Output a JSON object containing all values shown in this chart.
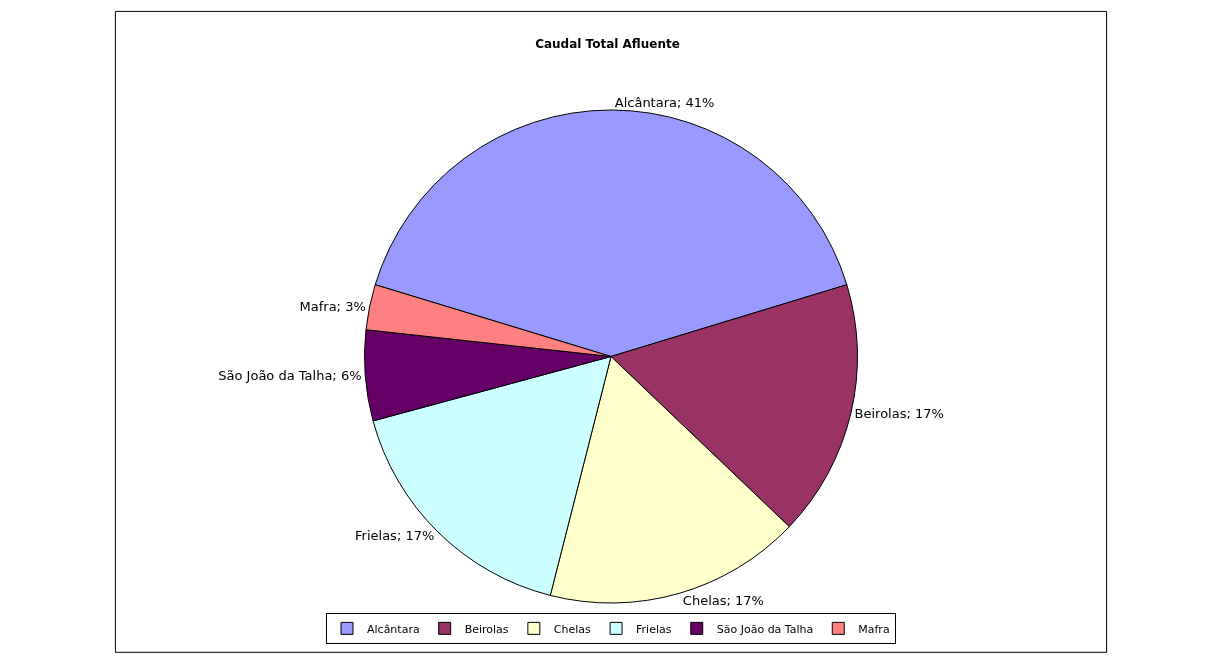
{
  "chart_data": {
    "type": "pie",
    "title": "Caudal Total Afluente",
    "categories": [
      "Alcântara",
      "Beirolas",
      "Chelas",
      "Frielas",
      "São João da Talha",
      "Mafra"
    ],
    "values": [
      41,
      17,
      17,
      17,
      6,
      3
    ],
    "value_labels": [
      "Alcântara; 41%",
      "Beirolas; 17%",
      "Chelas; 17%",
      "Frielas; 17%",
      "São João da Talha; 6%",
      "Mafra; 3%"
    ],
    "colors": [
      "#9999ff",
      "#993366",
      "#ffffcc",
      "#ccffff",
      "#660066",
      "#ff8080"
    ],
    "legend": "bottom"
  }
}
